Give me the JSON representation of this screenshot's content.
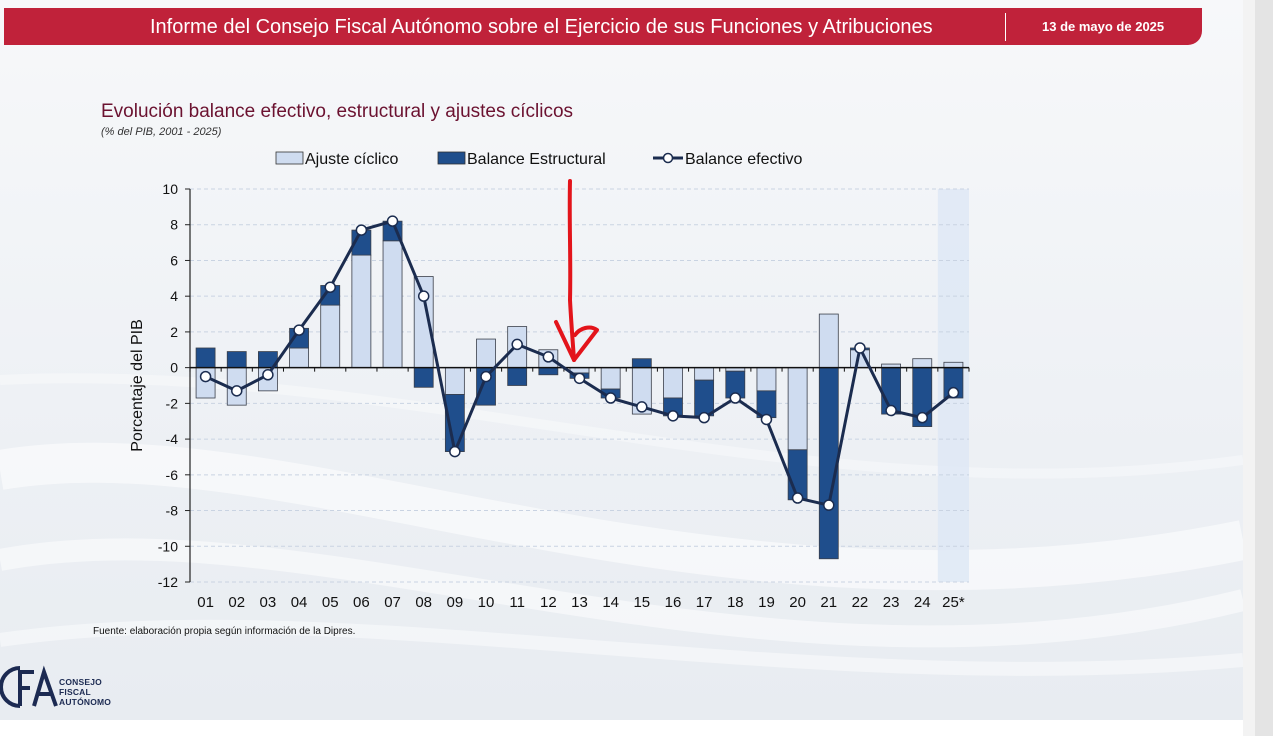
{
  "header": {
    "title": "Informe del Consejo Fiscal Autónomo sobre el Ejercicio de sus Funciones y Atribuciones",
    "date": "13 de mayo de 2025"
  },
  "source": "Fuente: elaboración propia según información de la Dipres.",
  "logo": {
    "lines": [
      "CONSEJO",
      "FISCAL",
      "AUTÓNOMO"
    ],
    "monogram": "CFA"
  },
  "colors": {
    "brand": "#c0223a",
    "ajuste": "#cfdcf0",
    "estructural": "#1f4e8c",
    "efectivo": "#1b2c4f",
    "annotation": "#e3141b",
    "projection_band": "#dde7f5"
  },
  "chart_data": {
    "type": "bar",
    "title": "Evolución balance efectivo, estructural y ajustes cíclicos",
    "subtitle": "(% del PIB, 2001 - 2025)",
    "xlabel": "",
    "ylabel": "Porcentaje del PIB",
    "ylim": [
      -12,
      10
    ],
    "yticks": [
      10,
      8,
      6,
      4,
      2,
      0,
      -2,
      -4,
      -6,
      -8,
      -10,
      -12
    ],
    "categories": [
      "01",
      "02",
      "03",
      "04",
      "05",
      "06",
      "07",
      "08",
      "09",
      "10",
      "11",
      "12",
      "13",
      "14",
      "15",
      "16",
      "17",
      "18",
      "19",
      "20",
      "21",
      "22",
      "23",
      "24",
      "25*"
    ],
    "legend_position": "top",
    "grid": true,
    "projection_highlight": "25*",
    "series": [
      {
        "name": "Ajuste cíclico",
        "kind": "bar",
        "values": [
          -1.7,
          -2.1,
          -1.3,
          1.1,
          3.5,
          6.3,
          7.1,
          5.1,
          -1.5,
          1.6,
          2.3,
          1.0,
          -0.3,
          -1.2,
          -2.6,
          -1.7,
          -0.7,
          -0.2,
          -1.3,
          -4.6,
          3.0,
          1.0,
          0.2,
          0.5,
          0.3
        ]
      },
      {
        "name": "Balance Estructural",
        "kind": "bar",
        "values": [
          1.1,
          0.9,
          0.9,
          1.1,
          1.1,
          1.4,
          1.1,
          -1.1,
          -3.2,
          -2.1,
          -1.0,
          -0.4,
          -0.3,
          -0.5,
          0.5,
          -1.0,
          -2.0,
          -1.5,
          -1.5,
          -2.8,
          -10.7,
          0.1,
          -2.6,
          -3.3,
          -1.7
        ]
      },
      {
        "name": "Balance efectivo",
        "kind": "line",
        "values": [
          -0.5,
          -1.3,
          -0.4,
          2.1,
          4.5,
          7.7,
          8.2,
          4.0,
          -4.7,
          -0.5,
          1.3,
          0.6,
          -0.6,
          -1.7,
          -2.2,
          -2.7,
          -2.8,
          -1.7,
          -2.9,
          -7.3,
          -7.7,
          1.1,
          -2.4,
          -2.8,
          -1.4
        ]
      }
    ]
  }
}
